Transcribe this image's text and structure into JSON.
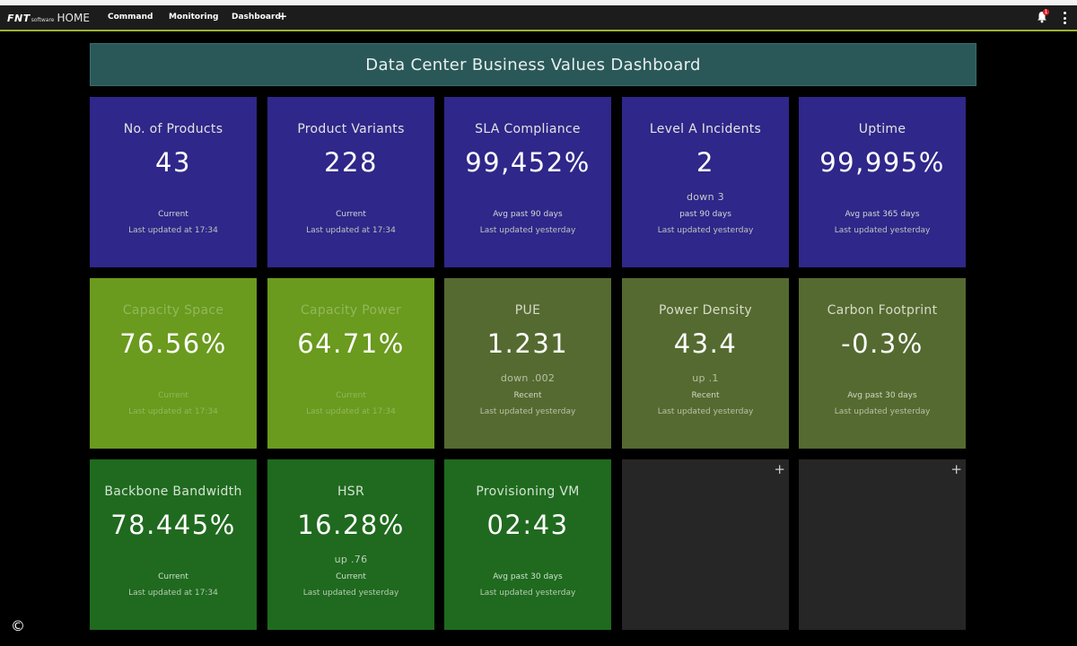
{
  "nav": {
    "brand_fnt": "FNT",
    "brand_software": "software",
    "brand_home": "HOME",
    "items": [
      "Command",
      "Monitoring",
      "Dashboard"
    ],
    "add_tab": "+",
    "notification_count": "1"
  },
  "banner": {
    "title": "Data Center Business Values Dashboard"
  },
  "tiles": [
    {
      "title": "No. of Products",
      "value": "43",
      "trend": "",
      "line1": "Current",
      "line2": "Last updated at 17:34"
    },
    {
      "title": "Product Variants",
      "value": "228",
      "trend": "",
      "line1": "Current",
      "line2": "Last updated at 17:34"
    },
    {
      "title": "SLA Compliance",
      "value": "99,452%",
      "trend": "",
      "line1": "Avg past 90 days",
      "line2": "Last updated yesterday"
    },
    {
      "title": "Level A Incidents",
      "value": "2",
      "trend": "down 3",
      "line1": "past 90 days",
      "line2": "Last updated yesterday"
    },
    {
      "title": "Uptime",
      "value": "99,995%",
      "trend": "",
      "line1": "Avg past 365 days",
      "line2": "Last updated yesterday"
    },
    {
      "title": "Capacity Space",
      "value": "76.56%",
      "trend": "",
      "line1": "Current",
      "line2": "Last updated at 17:34"
    },
    {
      "title": "Capacity Power",
      "value": "64.71%",
      "trend": "",
      "line1": "Current",
      "line2": "Last updated at 17:34"
    },
    {
      "title": "PUE",
      "value": "1.231",
      "trend": "down .002",
      "line1": "Recent",
      "line2": "Last updated yesterday"
    },
    {
      "title": "Power Density",
      "value": "43.4",
      "trend": "up .1",
      "line1": "Recent",
      "line2": "Last updated yesterday"
    },
    {
      "title": "Carbon Footprint",
      "value": "-0.3%",
      "trend": "",
      "line1": "Avg past 30 days",
      "line2": "Last updated yesterday"
    },
    {
      "title": "Backbone Bandwidth",
      "value": "78.445%",
      "trend": "",
      "line1": "Current",
      "line2": "Last updated at 17:34"
    },
    {
      "title": "HSR",
      "value": "16.28%",
      "trend": "up .76",
      "line1": "Current",
      "line2": "Last updated yesterday"
    },
    {
      "title": "Provisioning VM",
      "value": "02:43",
      "trend": "",
      "line1": "Avg past 30 days",
      "line2": "Last updated yesterday"
    }
  ],
  "empty_tiles": [
    {
      "add": "+"
    },
    {
      "add": "+"
    }
  ],
  "footer": {
    "copyright": "©"
  },
  "colors": {
    "purple": "#2f2789",
    "lime": "#6a9a1e",
    "olive": "#556a30",
    "green": "#1f6a1e",
    "empty": "#262626",
    "banner": "#2a5858",
    "nav_accent": "#9fb32a"
  }
}
